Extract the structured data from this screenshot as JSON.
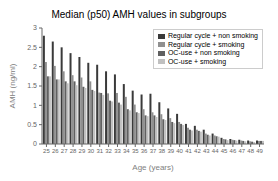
{
  "chart_data": {
    "type": "bar",
    "title": "Median (p50) AMH values in subgroups",
    "xlabel": "Age (years)",
    "ylabel": "AMH (ng/ml)",
    "categories": [
      25,
      26,
      27,
      28,
      29,
      30,
      31,
      32,
      33,
      34,
      35,
      36,
      37,
      38,
      39,
      40,
      41,
      42,
      43,
      44,
      45,
      46,
      47,
      48,
      49
    ],
    "series": [
      {
        "name": "Regular cycle + non smoking",
        "color": "#3a3a3a",
        "values": [
          2.8,
          2.65,
          2.5,
          2.35,
          2.25,
          2.1,
          2.05,
          1.88,
          1.8,
          1.55,
          1.38,
          1.28,
          1.3,
          1.08,
          0.92,
          0.78,
          0.52,
          0.47,
          0.37,
          0.27,
          0.16,
          0.13,
          0.11,
          0.09,
          0.09
        ]
      },
      {
        "name": "Regular cycle + smoking",
        "color": "#909090",
        "values": [
          2.12,
          2.02,
          1.88,
          1.78,
          1.72,
          1.62,
          1.33,
          1.31,
          1.32,
          1.22,
          1.02,
          0.9,
          0.82,
          0.77,
          0.67,
          0.57,
          0.42,
          0.37,
          0.27,
          0.22,
          0.13,
          0.11,
          0.09,
          0.07,
          0.08
        ]
      },
      {
        "name": "OC-use + non smoking",
        "color": "#606060",
        "values": [
          1.75,
          1.67,
          1.62,
          1.62,
          1.48,
          1.4,
          1.32,
          1.12,
          1.07,
          0.9,
          0.82,
          0.74,
          0.74,
          0.64,
          0.57,
          0.52,
          0.37,
          0.34,
          0.24,
          0.2,
          0.12,
          0.1,
          0.08,
          0.06,
          0.08
        ]
      },
      {
        "name": "OC-use + smoking",
        "color": "#c0c0c0",
        "values": [
          1.75,
          1.67,
          1.57,
          1.52,
          1.45,
          1.37,
          1.27,
          1.1,
          1.02,
          0.87,
          0.8,
          0.72,
          0.7,
          0.62,
          0.54,
          0.49,
          0.35,
          0.32,
          0.22,
          0.19,
          0.1,
          0.09,
          0.07,
          0.05,
          0.08
        ]
      }
    ],
    "ylim": [
      0,
      3.0
    ],
    "yticks": [
      0,
      0.5,
      1.0,
      1.5,
      2.0,
      2.5,
      3.0
    ],
    "grid": false,
    "legend": "upper right"
  }
}
